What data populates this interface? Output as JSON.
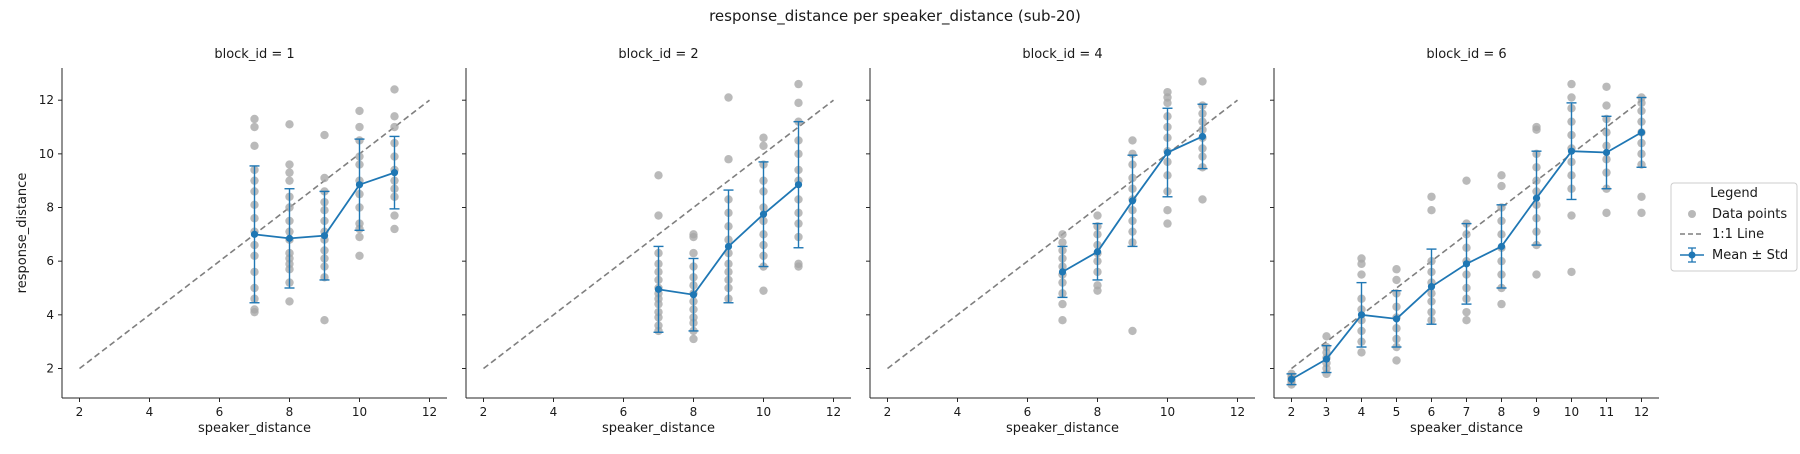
{
  "figure": {
    "title": "response_distance per speaker_distance (sub-20)"
  },
  "colors": {
    "points": "#a6a6a6",
    "mean": "#1f77b4",
    "identity": "#7f7f7f",
    "axis": "#262626"
  },
  "legend": {
    "title": "Legend",
    "placement": "center-right",
    "items": [
      "Data points",
      "1:1 Line",
      "Mean ± Std"
    ]
  },
  "chart_data": [
    {
      "type": "scatter",
      "title": "block_id = 1",
      "xlabel": "speaker_distance",
      "ylabel": "response_distance",
      "xlim": [
        1.5,
        12.5
      ],
      "ylim": [
        0.9,
        13.2
      ],
      "xticks": [
        2,
        4,
        6,
        8,
        10,
        12
      ],
      "yticks": [
        2,
        4,
        6,
        8,
        10,
        12
      ],
      "identity_line": {
        "from": 2,
        "to": 12
      },
      "mean": {
        "x": [
          7,
          8,
          9,
          10,
          11
        ],
        "y": [
          7.0,
          6.85,
          6.95,
          8.85,
          9.3
        ],
        "std": [
          2.55,
          1.85,
          1.65,
          1.7,
          1.35
        ]
      },
      "points": [
        [
          7,
          4.1
        ],
        [
          7,
          4.2
        ],
        [
          7,
          4.6
        ],
        [
          7,
          5.0
        ],
        [
          7,
          5.6
        ],
        [
          7,
          6.2
        ],
        [
          7,
          6.6
        ],
        [
          7,
          7.1
        ],
        [
          7,
          7.6
        ],
        [
          7,
          8.1
        ],
        [
          7,
          8.6
        ],
        [
          7,
          9.0
        ],
        [
          7,
          9.4
        ],
        [
          7,
          10.3
        ],
        [
          7,
          11.0
        ],
        [
          7,
          11.3
        ],
        [
          8,
          4.5
        ],
        [
          8,
          5.2
        ],
        [
          8,
          5.7
        ],
        [
          8,
          5.9
        ],
        [
          8,
          6.1
        ],
        [
          8,
          6.3
        ],
        [
          8,
          6.8
        ],
        [
          8,
          7.1
        ],
        [
          8,
          7.5
        ],
        [
          8,
          8.0
        ],
        [
          8,
          8.4
        ],
        [
          8,
          9.0
        ],
        [
          8,
          9.3
        ],
        [
          8,
          9.6
        ],
        [
          8,
          11.1
        ],
        [
          9,
          3.8
        ],
        [
          9,
          5.4
        ],
        [
          9,
          5.8
        ],
        [
          9,
          6.1
        ],
        [
          9,
          6.4
        ],
        [
          9,
          6.8
        ],
        [
          9,
          7.1
        ],
        [
          9,
          7.5
        ],
        [
          9,
          7.9
        ],
        [
          9,
          8.2
        ],
        [
          9,
          8.6
        ],
        [
          9,
          9.1
        ],
        [
          9,
          10.7
        ],
        [
          10,
          6.2
        ],
        [
          10,
          6.9
        ],
        [
          10,
          7.2
        ],
        [
          10,
          7.4
        ],
        [
          10,
          8.0
        ],
        [
          10,
          8.5
        ],
        [
          10,
          9.0
        ],
        [
          10,
          9.6
        ],
        [
          10,
          9.9
        ],
        [
          10,
          10.5
        ],
        [
          10,
          11.0
        ],
        [
          10,
          11.6
        ],
        [
          11,
          7.2
        ],
        [
          11,
          7.7
        ],
        [
          11,
          8.4
        ],
        [
          11,
          8.7
        ],
        [
          11,
          9.0
        ],
        [
          11,
          9.4
        ],
        [
          11,
          9.9
        ],
        [
          11,
          10.4
        ],
        [
          11,
          11.0
        ],
        [
          11,
          11.4
        ],
        [
          11,
          12.4
        ]
      ]
    },
    {
      "type": "scatter",
      "title": "block_id = 2",
      "xlabel": "speaker_distance",
      "ylabel": "",
      "xlim": [
        1.5,
        12.5
      ],
      "ylim": [
        0.9,
        13.2
      ],
      "xticks": [
        2,
        4,
        6,
        8,
        10,
        12
      ],
      "yticks": [
        2,
        4,
        6,
        8,
        10,
        12
      ],
      "identity_line": {
        "from": 2,
        "to": 12
      },
      "mean": {
        "x": [
          7,
          8,
          9,
          10,
          11
        ],
        "y": [
          4.95,
          4.75,
          6.55,
          7.75,
          8.85
        ],
        "std": [
          1.6,
          1.35,
          2.1,
          1.95,
          2.35
        ]
      },
      "points": [
        [
          7,
          3.4
        ],
        [
          7,
          3.6
        ],
        [
          7,
          3.9
        ],
        [
          7,
          4.1
        ],
        [
          7,
          4.4
        ],
        [
          7,
          4.6
        ],
        [
          7,
          4.8
        ],
        [
          7,
          5.0
        ],
        [
          7,
          5.3
        ],
        [
          7,
          5.6
        ],
        [
          7,
          5.9
        ],
        [
          7,
          6.3
        ],
        [
          7,
          7.7
        ],
        [
          7,
          9.2
        ],
        [
          8,
          3.1
        ],
        [
          8,
          3.4
        ],
        [
          8,
          3.7
        ],
        [
          8,
          3.9
        ],
        [
          8,
          4.2
        ],
        [
          8,
          4.5
        ],
        [
          8,
          4.8
        ],
        [
          8,
          5.1
        ],
        [
          8,
          5.4
        ],
        [
          8,
          5.8
        ],
        [
          8,
          6.3
        ],
        [
          8,
          6.9
        ],
        [
          8,
          7.0
        ],
        [
          9,
          4.6
        ],
        [
          9,
          5.0
        ],
        [
          9,
          5.3
        ],
        [
          9,
          5.6
        ],
        [
          9,
          5.9
        ],
        [
          9,
          6.3
        ],
        [
          9,
          6.8
        ],
        [
          9,
          7.3
        ],
        [
          9,
          7.8
        ],
        [
          9,
          8.3
        ],
        [
          9,
          9.8
        ],
        [
          9,
          12.1
        ],
        [
          10,
          4.9
        ],
        [
          10,
          5.8
        ],
        [
          10,
          6.2
        ],
        [
          10,
          6.6
        ],
        [
          10,
          7.0
        ],
        [
          10,
          7.5
        ],
        [
          10,
          8.0
        ],
        [
          10,
          8.6
        ],
        [
          10,
          9.0
        ],
        [
          10,
          9.6
        ],
        [
          10,
          10.3
        ],
        [
          10,
          10.6
        ],
        [
          11,
          5.8
        ],
        [
          11,
          5.9
        ],
        [
          11,
          6.9
        ],
        [
          11,
          7.4
        ],
        [
          11,
          7.8
        ],
        [
          11,
          8.3
        ],
        [
          11,
          9.0
        ],
        [
          11,
          9.4
        ],
        [
          11,
          10.0
        ],
        [
          11,
          10.5
        ],
        [
          11,
          11.2
        ],
        [
          11,
          11.9
        ],
        [
          11,
          12.6
        ]
      ]
    },
    {
      "type": "scatter",
      "title": "block_id = 4",
      "xlabel": "speaker_distance",
      "ylabel": "",
      "xlim": [
        1.5,
        12.5
      ],
      "ylim": [
        0.9,
        13.2
      ],
      "xticks": [
        2,
        4,
        6,
        8,
        10,
        12
      ],
      "yticks": [
        2,
        4,
        6,
        8,
        10,
        12
      ],
      "identity_line": {
        "from": 2,
        "to": 12
      },
      "mean": {
        "x": [
          7,
          8,
          9,
          10,
          11
        ],
        "y": [
          5.6,
          6.35,
          8.25,
          10.05,
          10.65
        ],
        "std": [
          0.95,
          1.05,
          1.7,
          1.65,
          1.2
        ]
      },
      "points": [
        [
          7,
          3.8
        ],
        [
          7,
          4.4
        ],
        [
          7,
          4.8
        ],
        [
          7,
          5.2
        ],
        [
          7,
          5.5
        ],
        [
          7,
          5.8
        ],
        [
          7,
          6.1
        ],
        [
          7,
          6.4
        ],
        [
          7,
          6.7
        ],
        [
          7,
          7.0
        ],
        [
          8,
          4.9
        ],
        [
          8,
          5.1
        ],
        [
          8,
          5.6
        ],
        [
          8,
          6.0
        ],
        [
          8,
          6.3
        ],
        [
          8,
          6.6
        ],
        [
          8,
          7.0
        ],
        [
          8,
          7.3
        ],
        [
          8,
          7.7
        ],
        [
          9,
          3.4
        ],
        [
          9,
          6.7
        ],
        [
          9,
          7.1
        ],
        [
          9,
          7.5
        ],
        [
          9,
          7.9
        ],
        [
          9,
          8.3
        ],
        [
          9,
          8.7
        ],
        [
          9,
          9.1
        ],
        [
          9,
          9.6
        ],
        [
          9,
          10.0
        ],
        [
          9,
          10.5
        ],
        [
          10,
          7.4
        ],
        [
          10,
          7.9
        ],
        [
          10,
          8.6
        ],
        [
          10,
          9.2
        ],
        [
          10,
          9.7
        ],
        [
          10,
          10.1
        ],
        [
          10,
          10.6
        ],
        [
          10,
          11.0
        ],
        [
          10,
          11.4
        ],
        [
          10,
          11.9
        ],
        [
          10,
          12.1
        ],
        [
          10,
          12.3
        ],
        [
          11,
          8.3
        ],
        [
          11,
          9.5
        ],
        [
          11,
          9.9
        ],
        [
          11,
          10.2
        ],
        [
          11,
          10.6
        ],
        [
          11,
          10.9
        ],
        [
          11,
          11.2
        ],
        [
          11,
          11.5
        ],
        [
          11,
          11.8
        ],
        [
          11,
          12.7
        ]
      ]
    },
    {
      "type": "scatter",
      "title": "block_id = 6",
      "xlabel": "speaker_distance",
      "ylabel": "",
      "xlim": [
        1.5,
        12.5
      ],
      "ylim": [
        0.9,
        13.2
      ],
      "xticks": [
        2,
        3,
        4,
        5,
        6,
        7,
        8,
        9,
        10,
        11,
        12
      ],
      "yticks": [
        2,
        4,
        6,
        8,
        10,
        12
      ],
      "identity_line": {
        "from": 2,
        "to": 12
      },
      "mean": {
        "x": [
          2,
          3,
          4,
          5,
          6,
          7,
          8,
          9,
          10,
          11,
          12
        ],
        "y": [
          1.6,
          2.35,
          4.0,
          3.85,
          5.05,
          5.9,
          6.55,
          8.35,
          10.1,
          10.05,
          10.8
        ],
        "std": [
          0.2,
          0.5,
          1.2,
          1.05,
          1.4,
          1.5,
          1.55,
          1.75,
          1.8,
          1.35,
          1.3
        ]
      },
      "points": [
        [
          2,
          1.4
        ],
        [
          2,
          1.5
        ],
        [
          2,
          1.6
        ],
        [
          2,
          1.7
        ],
        [
          2,
          1.8
        ],
        [
          3,
          1.8
        ],
        [
          3,
          2.0
        ],
        [
          3,
          2.2
        ],
        [
          3,
          2.4
        ],
        [
          3,
          2.6
        ],
        [
          3,
          2.8
        ],
        [
          3,
          3.2
        ],
        [
          4,
          2.6
        ],
        [
          4,
          3.0
        ],
        [
          4,
          3.4
        ],
        [
          4,
          3.8
        ],
        [
          4,
          4.2
        ],
        [
          4,
          4.6
        ],
        [
          4,
          5.5
        ],
        [
          4,
          5.9
        ],
        [
          4,
          6.1
        ],
        [
          5,
          2.3
        ],
        [
          5,
          2.8
        ],
        [
          5,
          3.1
        ],
        [
          5,
          3.5
        ],
        [
          5,
          3.9
        ],
        [
          5,
          4.3
        ],
        [
          5,
          4.8
        ],
        [
          5,
          5.3
        ],
        [
          5,
          5.7
        ],
        [
          6,
          3.8
        ],
        [
          6,
          4.1
        ],
        [
          6,
          4.5
        ],
        [
          6,
          4.8
        ],
        [
          6,
          5.2
        ],
        [
          6,
          5.6
        ],
        [
          6,
          6.0
        ],
        [
          6,
          7.9
        ],
        [
          6,
          8.4
        ],
        [
          7,
          3.8
        ],
        [
          7,
          4.1
        ],
        [
          7,
          4.6
        ],
        [
          7,
          5.0
        ],
        [
          7,
          5.5
        ],
        [
          7,
          6.0
        ],
        [
          7,
          6.5
        ],
        [
          7,
          7.0
        ],
        [
          7,
          7.4
        ],
        [
          7,
          9.0
        ],
        [
          8,
          4.4
        ],
        [
          8,
          5.0
        ],
        [
          8,
          5.5
        ],
        [
          8,
          6.0
        ],
        [
          8,
          6.5
        ],
        [
          8,
          7.0
        ],
        [
          8,
          7.5
        ],
        [
          8,
          8.0
        ],
        [
          8,
          8.8
        ],
        [
          8,
          9.2
        ],
        [
          9,
          5.5
        ],
        [
          9,
          6.6
        ],
        [
          9,
          7.1
        ],
        [
          9,
          7.6
        ],
        [
          9,
          8.1
        ],
        [
          9,
          8.6
        ],
        [
          9,
          9.0
        ],
        [
          9,
          9.5
        ],
        [
          9,
          10.0
        ],
        [
          9,
          10.9
        ],
        [
          9,
          11.0
        ],
        [
          10,
          5.6
        ],
        [
          10,
          7.7
        ],
        [
          10,
          8.7
        ],
        [
          10,
          9.2
        ],
        [
          10,
          9.7
        ],
        [
          10,
          10.2
        ],
        [
          10,
          10.7
        ],
        [
          10,
          11.2
        ],
        [
          10,
          11.7
        ],
        [
          10,
          12.1
        ],
        [
          10,
          12.6
        ],
        [
          11,
          7.8
        ],
        [
          11,
          8.7
        ],
        [
          11,
          9.3
        ],
        [
          11,
          9.8
        ],
        [
          11,
          10.3
        ],
        [
          11,
          10.8
        ],
        [
          11,
          11.3
        ],
        [
          11,
          11.8
        ],
        [
          11,
          12.5
        ],
        [
          12,
          7.8
        ],
        [
          12,
          8.4
        ],
        [
          12,
          9.6
        ],
        [
          12,
          10.0
        ],
        [
          12,
          10.4
        ],
        [
          12,
          10.8
        ],
        [
          12,
          11.2
        ],
        [
          12,
          11.6
        ],
        [
          12,
          11.9
        ],
        [
          12,
          12.1
        ]
      ]
    }
  ]
}
